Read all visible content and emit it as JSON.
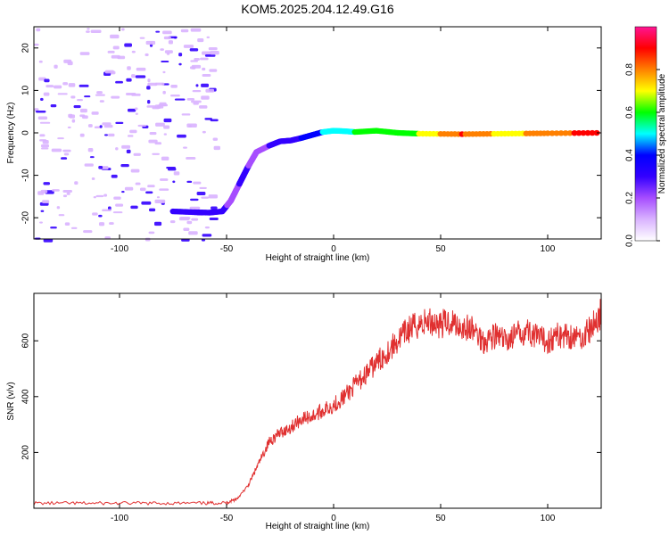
{
  "title": "KOM5.2025.204.12.49.G16",
  "colors": {
    "snr_line": "#e03030",
    "axis": "#000000",
    "background": "#ffffff"
  },
  "colormap": [
    "#ffffff",
    "#d9b3ff",
    "#a64dff",
    "#3300ff",
    "#0000ff",
    "#00ffff",
    "#00ff00",
    "#ffff00",
    "#ff8000",
    "#ff0000",
    "#ff1493"
  ],
  "chart_data": [
    {
      "type": "heatmap",
      "xlabel": "Height of straight line (km)",
      "ylabel": "Frequency (Hz)",
      "xlim": [
        -140,
        125
      ],
      "ylim": [
        -25,
        25
      ],
      "xticks": [
        -100,
        -50,
        0,
        50,
        100
      ],
      "yticks": [
        -20,
        -10,
        0,
        10,
        20
      ],
      "colorbar": {
        "label": "Normalized spectral amplitude",
        "range": [
          0,
          1
        ],
        "ticks": [
          0.0,
          0.2,
          0.4,
          0.6,
          0.8
        ]
      },
      "ridge": {
        "x": [
          -75,
          -65,
          -58,
          -52,
          -48,
          -44,
          -40,
          -36,
          -30,
          -25,
          -20,
          -15,
          -10,
          -5,
          0,
          5,
          10,
          20,
          30,
          40,
          60,
          80,
          100,
          125
        ],
        "y": [
          -18.5,
          -18.7,
          -18.8,
          -18.5,
          -16,
          -12,
          -8,
          -4.5,
          -3,
          -2,
          -1.8,
          -1.2,
          -0.5,
          0.2,
          0.5,
          0.4,
          0.2,
          0.5,
          0,
          -0.2,
          -0.3,
          -0.2,
          -0.1,
          0
        ],
        "amp": [
          0.25,
          0.28,
          0.3,
          0.3,
          0.2,
          0.25,
          0.25,
          0.2,
          0.25,
          0.3,
          0.3,
          0.35,
          0.4,
          0.45,
          0.5,
          0.5,
          0.55,
          0.55,
          0.6,
          0.65,
          0.85,
          0.7,
          0.8,
          0.9
        ]
      }
    },
    {
      "type": "line",
      "xlabel": "Height of straight line (km)",
      "ylabel": "SNR (v/v)",
      "xlim": [
        -140,
        125
      ],
      "ylim": [
        0,
        770
      ],
      "xticks": [
        -100,
        -50,
        0,
        50,
        100
      ],
      "yticks": [
        200,
        400,
        600
      ],
      "series": [
        {
          "x": [
            -140,
            -120,
            -100,
            -80,
            -60,
            -50,
            -45,
            -40,
            -35,
            -30,
            -25,
            -20,
            -15,
            -10,
            -5,
            0,
            5,
            10,
            15,
            20,
            25,
            30,
            35,
            40,
            45,
            50,
            55,
            60,
            65,
            70,
            75,
            80,
            85,
            90,
            95,
            100,
            105,
            110,
            115,
            120,
            125
          ],
          "values": [
            18,
            18,
            18,
            18,
            18,
            20,
            35,
            80,
            160,
            240,
            270,
            290,
            320,
            330,
            350,
            370,
            400,
            440,
            480,
            520,
            560,
            600,
            640,
            660,
            670,
            660,
            670,
            650,
            640,
            600,
            620,
            600,
            620,
            640,
            610,
            600,
            620,
            620,
            610,
            640,
            700
          ]
        }
      ]
    }
  ]
}
